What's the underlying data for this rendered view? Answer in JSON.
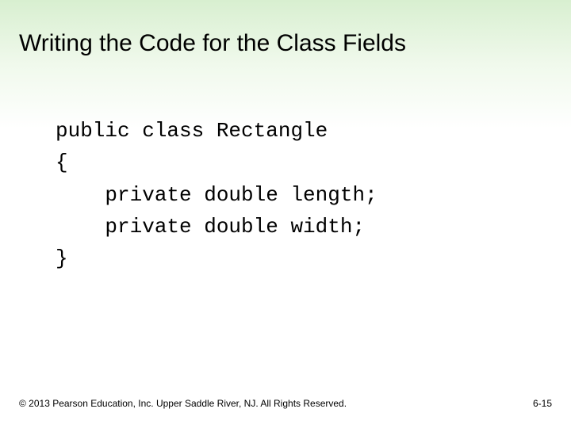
{
  "slide": {
    "title": "Writing the Code for the Class Fields",
    "background_gradient_top": "#d8efd0",
    "background_gradient_bottom": "#ffffff",
    "title_fontsize": 30,
    "title_color": "#000000",
    "code": {
      "font_family": "Courier New",
      "fontsize": 26,
      "color": "#000000",
      "lines": [
        "public class Rectangle",
        "{",
        "    private double length;",
        "    private double width;",
        "}"
      ]
    },
    "footer": {
      "copyright": "© 2013 Pearson Education, Inc. Upper Saddle River, NJ. All Rights Reserved.",
      "page_number": "6-15",
      "fontsize": 12,
      "color": "#000000"
    }
  }
}
